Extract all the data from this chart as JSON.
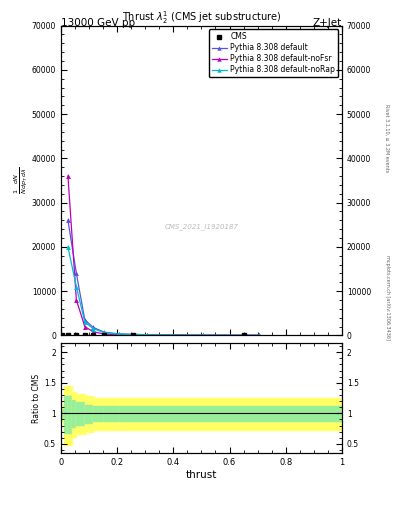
{
  "title": "Thrust $\\lambda\\_2^1$ (CMS jet substructure)",
  "top_left": "13000 GeV pp",
  "top_right": "Z+Jet",
  "xlabel": "thrust",
  "right_label1": "Rivet 3.1.10, ≥ 3.2M events",
  "right_label2": "mcplots.cern.ch [arXiv:1306.3436]",
  "watermark": "CMS_2021_I1920187",
  "ylim_main": [
    0,
    70000
  ],
  "yticks_main": [
    0,
    10000,
    20000,
    30000,
    40000,
    50000,
    60000,
    70000
  ],
  "xlim": [
    0,
    1
  ],
  "ratio_ylim": [
    0.35,
    2.15
  ],
  "color_default": "#5555dd",
  "color_nofsr": "#bb00bb",
  "color_norap": "#00bbcc",
  "color_cms": "black",
  "bg_color": "#ffffff",
  "yellow": "#ffff66",
  "green": "#99ee99"
}
